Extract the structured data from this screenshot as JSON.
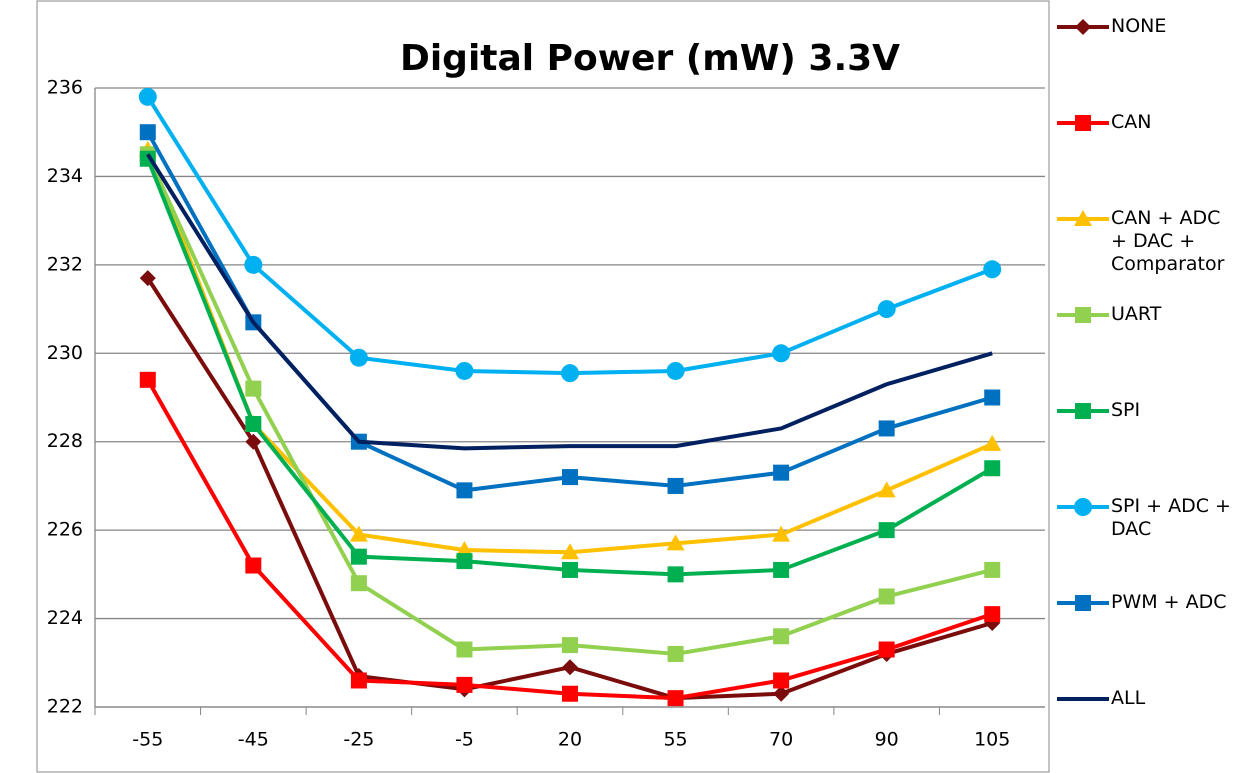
{
  "chart_data": {
    "type": "line",
    "title": "Digital Power (mW) 3.3V",
    "categories": [
      "-55",
      "-45",
      "-25",
      "-5",
      "20",
      "55",
      "70",
      "90",
      "105"
    ],
    "ylim": [
      222,
      236
    ],
    "yticks": [
      222,
      224,
      226,
      228,
      230,
      232,
      234,
      236
    ],
    "grid": true,
    "legend": "right",
    "series": [
      {
        "name": "NONE",
        "color": "#7b0c0c",
        "marker": "diamond",
        "values": [
          231.7,
          228.0,
          222.7,
          222.4,
          222.9,
          222.2,
          222.3,
          223.2,
          223.9
        ]
      },
      {
        "name": "CAN",
        "color": "#ff0000",
        "marker": "square",
        "values": [
          229.4,
          225.2,
          222.6,
          222.5,
          222.3,
          222.2,
          222.6,
          223.3,
          224.1
        ]
      },
      {
        "name": "CAN + ADC + DAC + Comparator",
        "color": "#ffc000",
        "marker": "triangle",
        "values": [
          234.6,
          228.4,
          225.9,
          225.55,
          225.5,
          225.7,
          225.9,
          226.9,
          227.95
        ]
      },
      {
        "name": "UART",
        "color": "#92d050",
        "marker": "square",
        "values": [
          234.5,
          229.2,
          224.8,
          223.3,
          223.4,
          223.2,
          223.6,
          224.5,
          225.1
        ]
      },
      {
        "name": "SPI",
        "color": "#00b050",
        "marker": "square",
        "values": [
          234.4,
          228.4,
          225.4,
          225.3,
          225.1,
          225.0,
          225.1,
          226.0,
          227.4
        ]
      },
      {
        "name": "SPI + ADC + DAC",
        "color": "#00b0f0",
        "marker": "circle",
        "values": [
          235.8,
          232.0,
          229.9,
          229.6,
          229.55,
          229.6,
          230.0,
          231.0,
          231.9
        ]
      },
      {
        "name": "PWM + ADC",
        "color": "#0070c0",
        "marker": "square",
        "values": [
          235.0,
          230.7,
          228.0,
          226.9,
          227.2,
          227.0,
          227.3,
          228.3,
          229.0
        ]
      },
      {
        "name": "ALL",
        "color": "#002060",
        "marker": "none",
        "values": [
          234.5,
          230.7,
          228.0,
          227.85,
          227.9,
          227.9,
          228.3,
          229.3,
          230.0
        ]
      }
    ]
  }
}
